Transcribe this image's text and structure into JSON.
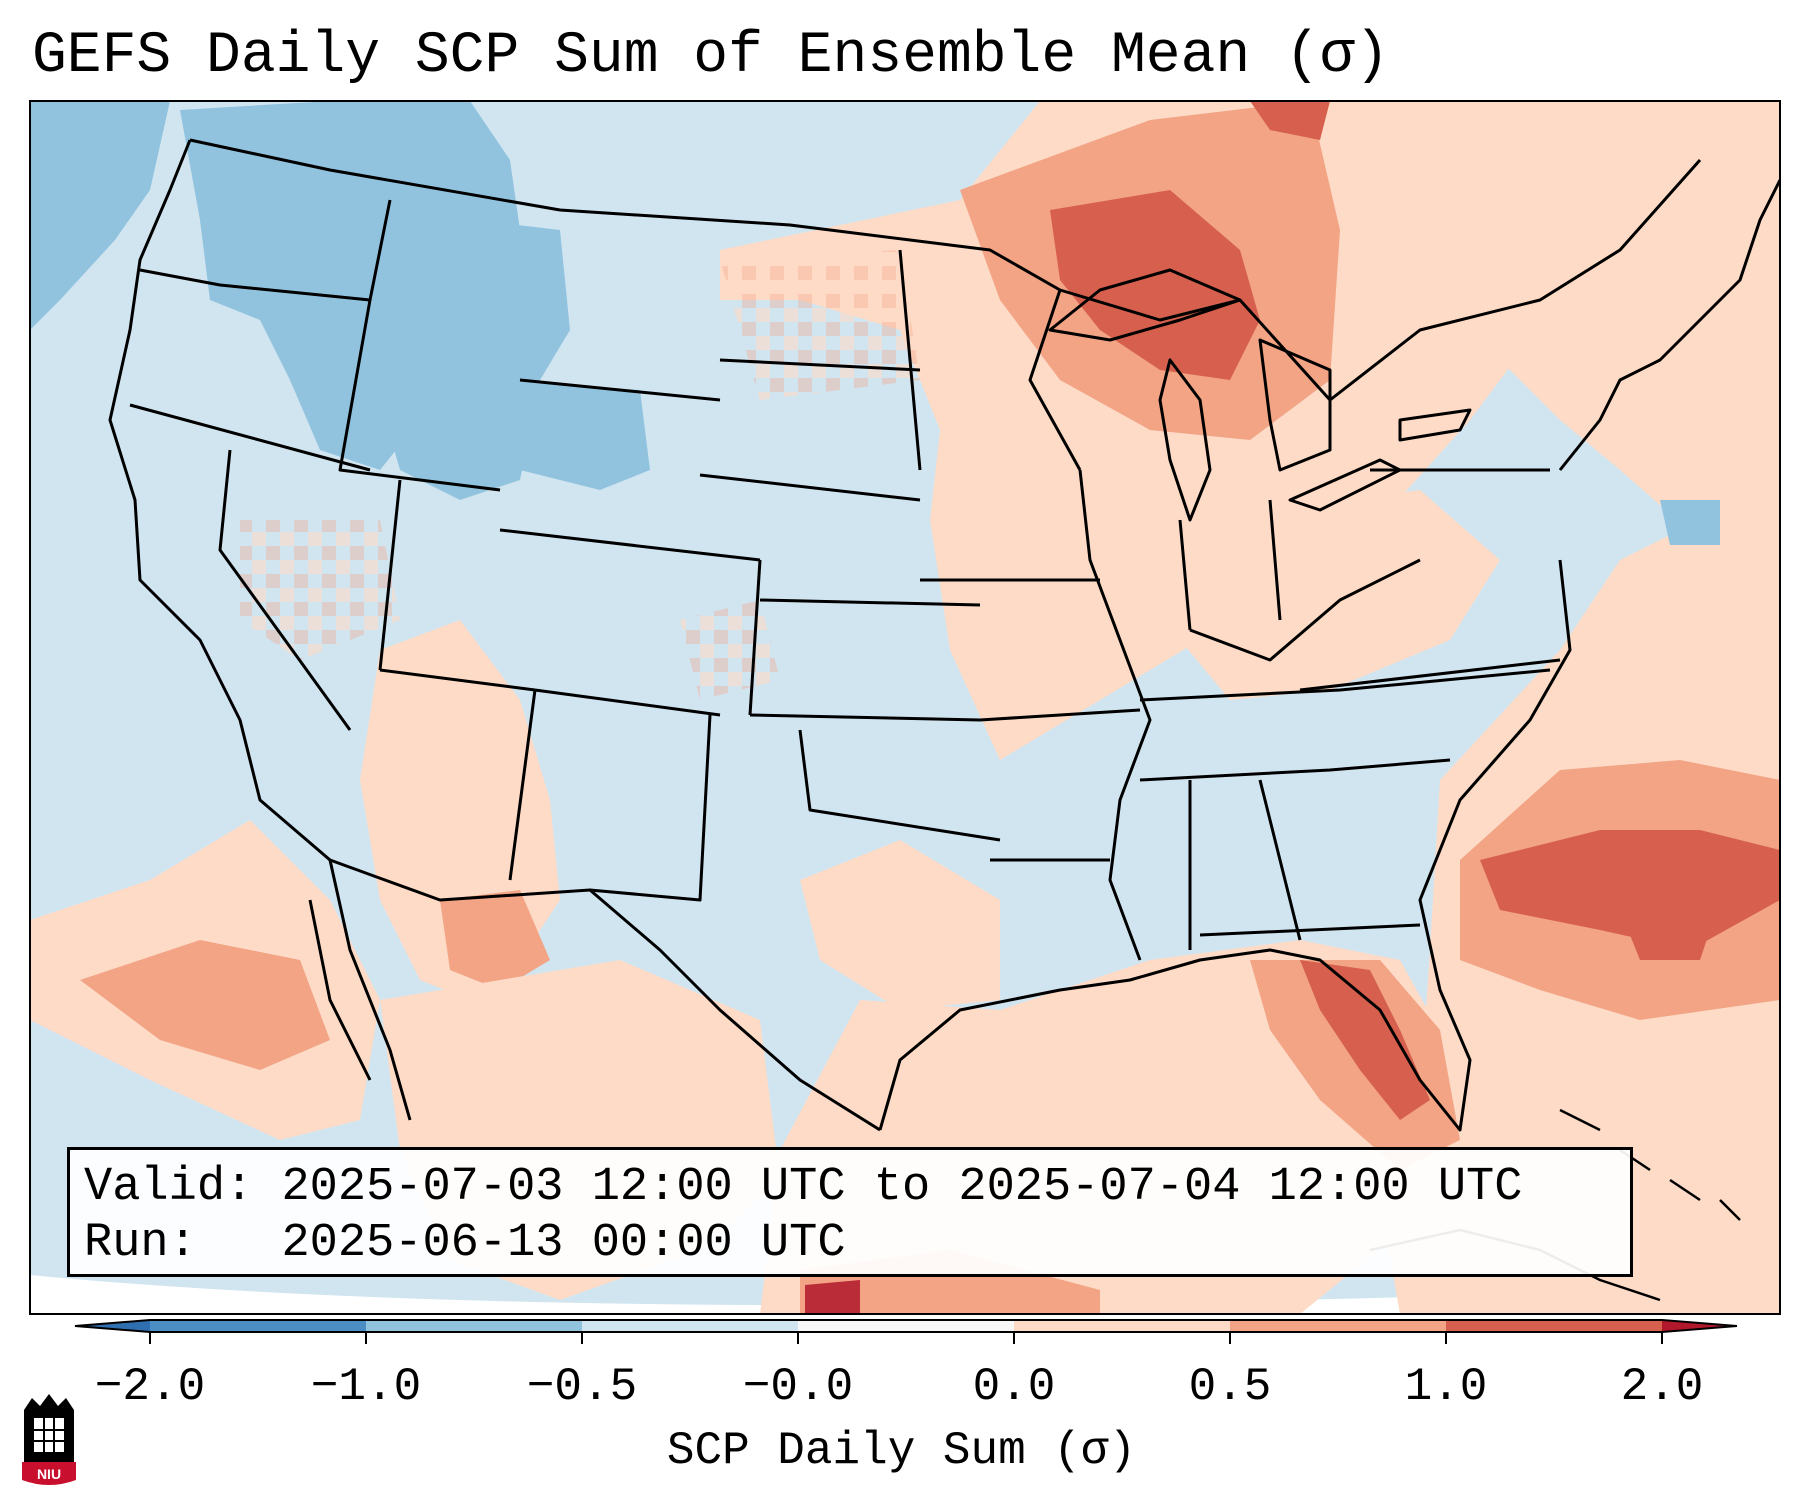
{
  "title": "GEFS Daily SCP Sum of Ensemble Mean (σ)",
  "info": {
    "valid_label": "Valid:",
    "valid_value": "2025-07-03 12:00 UTC to 2025-07-04 12:00 UTC",
    "run_label": "Run:",
    "run_value": "2025-06-13 00:00 UTC"
  },
  "colorbar": {
    "label": "SCP Daily Sum (σ)",
    "ticks": [
      "−2.0",
      "−1.0",
      "−0.5",
      "−0.0",
      "0.0",
      "0.5",
      "1.0",
      "2.0"
    ],
    "bin_colors": [
      "#4a8ec4",
      "#91c3df",
      "#d1e5f0",
      "#f7f7f7",
      "#fddbc7",
      "#f2a485",
      "#d6604d"
    ],
    "under_color": "#2f6fb0",
    "over_color": "#b2182b"
  },
  "map": {
    "background_value_color": "#d1e5f0",
    "regions": [
      {
        "name": "pacific-northwest",
        "color": "#91c3df"
      },
      {
        "name": "northern-rockies",
        "color": "#91c3df"
      },
      {
        "name": "upper-midwest",
        "color": "#f2a485"
      },
      {
        "name": "great-lakes",
        "color": "#d6604d"
      },
      {
        "name": "florida",
        "color": "#d6604d"
      },
      {
        "name": "western-atlantic",
        "color": "#d6604d"
      },
      {
        "name": "desert-southwest",
        "color": "#fddbc7"
      }
    ]
  },
  "logo": {
    "text": "NIU"
  }
}
